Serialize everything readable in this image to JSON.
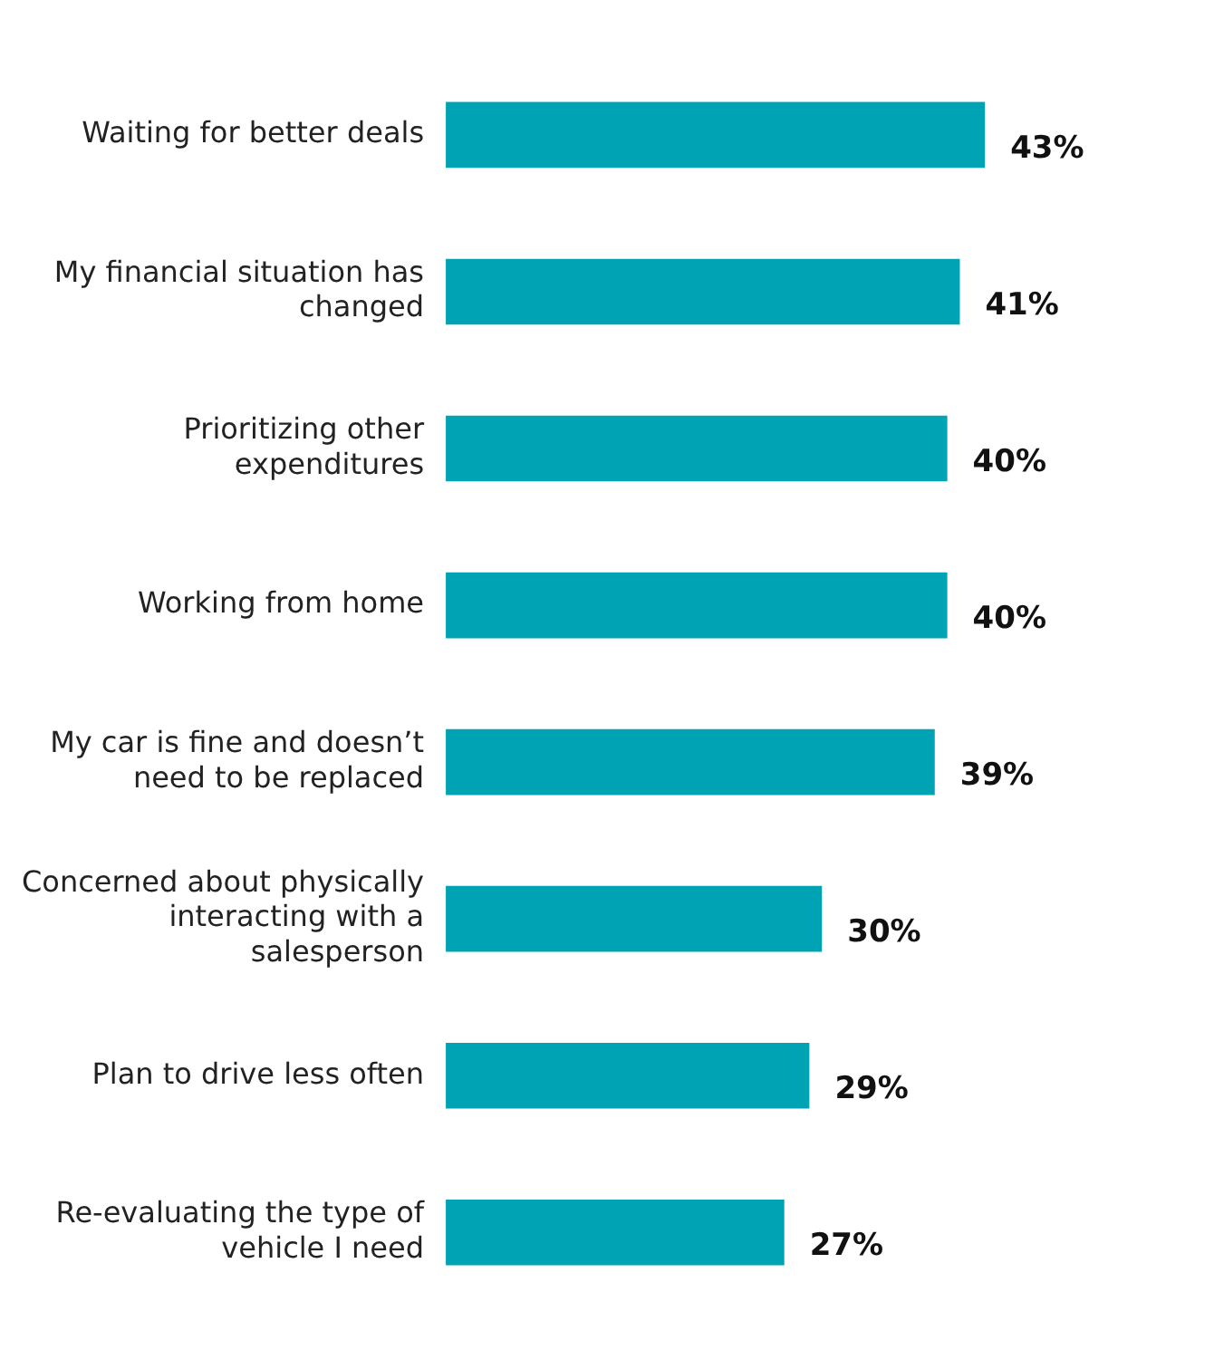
{
  "chart_data": {
    "type": "bar",
    "orientation": "horizontal",
    "categories": [
      "Waiting for better deals",
      "My financial situation has changed",
      "Prioritizing other expenditures",
      "Working from home",
      "My car is fine and doesn’t need to be replaced",
      "Concerned about physically interacting with a salesperson",
      "Plan to drive less often",
      "Re-evaluating the type of vehicle I need"
    ],
    "values": [
      43,
      41,
      40,
      40,
      39,
      30,
      29,
      27
    ],
    "value_labels": [
      "43%",
      "41%",
      "40%",
      "40%",
      "39%",
      "30%",
      "29%",
      "27%"
    ],
    "color": "#00a3b4",
    "legend": false
  }
}
